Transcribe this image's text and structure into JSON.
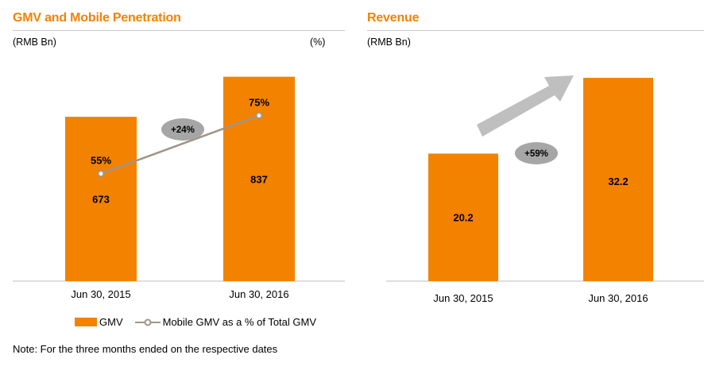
{
  "colors": {
    "bar": "#f38200",
    "line": "#a19588",
    "arrow": "#bfbfbf",
    "bubble": "#a6a6a6",
    "accent_title": "#f38200"
  },
  "left": {
    "title": "GMV and Mobile Penetration",
    "unit_left": "(RMB Bn)",
    "unit_right": "(%)",
    "growth_label": "+24%"
  },
  "right": {
    "title": "Revenue",
    "unit_left": "(RMB Bn)",
    "growth_label": "+59%"
  },
  "legend": {
    "gmv_label": "GMV",
    "mobile_label": "Mobile GMV as a % of Total GMV"
  },
  "note": "Note: For the three months ended on the respective dates",
  "chart_data": [
    {
      "type": "bar",
      "title": "GMV and Mobile Penetration",
      "categories": [
        "Jun 30, 2015",
        "Jun 30, 2016"
      ],
      "series": [
        {
          "name": "GMV",
          "type": "bar",
          "values": [
            673,
            837
          ],
          "labels": [
            "673",
            "837"
          ]
        },
        {
          "name": "Mobile GMV as a % of Total GMV",
          "type": "line",
          "values": [
            55,
            75
          ],
          "labels": [
            "55%",
            "75%"
          ]
        }
      ],
      "ylabel": "(RMB Bn)",
      "y2label": "(%)",
      "annotation": "+24%"
    },
    {
      "type": "bar",
      "title": "Revenue",
      "categories": [
        "Jun 30, 2015",
        "Jun 30, 2016"
      ],
      "series": [
        {
          "name": "Revenue",
          "values": [
            20.2,
            32.2
          ],
          "labels": [
            "20.2",
            "32.2"
          ]
        }
      ],
      "ylabel": "(RMB Bn)",
      "annotation": "+59%"
    }
  ]
}
